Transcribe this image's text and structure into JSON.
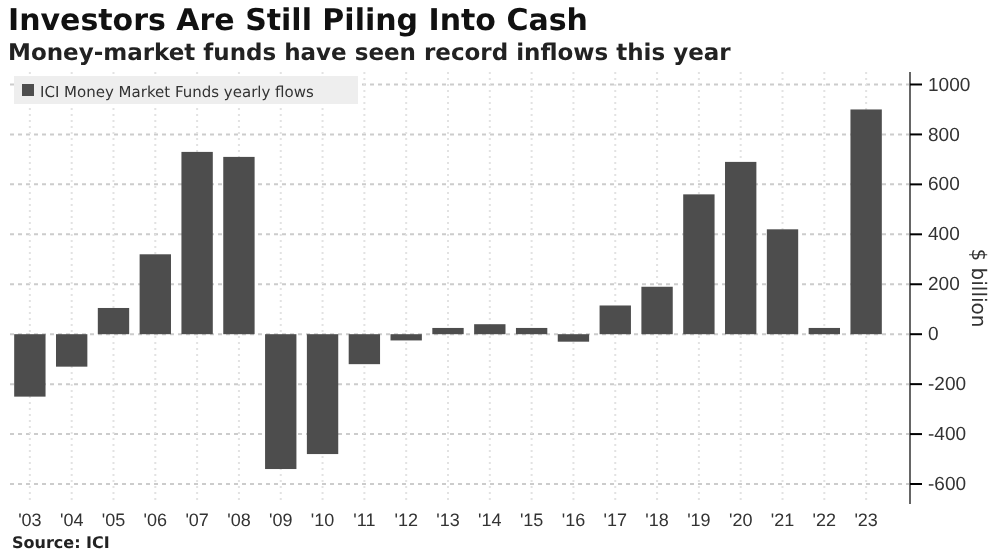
{
  "chart_data": {
    "type": "bar",
    "title": "Investors Are Still Piling Into Cash",
    "subtitle": "Money-market funds have seen record inflows this year",
    "ylabel": "$ billion",
    "categories": [
      "'03",
      "'04",
      "'05",
      "'06",
      "'07",
      "'08",
      "'09",
      "'10",
      "'11",
      "'12",
      "'13",
      "'14",
      "'15",
      "'16",
      "'17",
      "'18",
      "'19",
      "'20",
      "'21",
      "'22",
      "'23"
    ],
    "series": [
      {
        "name": "ICI Money Market Funds yearly flows",
        "color": "#4d4d4d",
        "values": [
          -250,
          -130,
          105,
          320,
          730,
          710,
          -540,
          -480,
          -120,
          -25,
          25,
          40,
          25,
          -30,
          115,
          190,
          560,
          690,
          420,
          25,
          900
        ]
      }
    ],
    "ylim": [
      -680,
      1050
    ],
    "yticks": [
      -600,
      -400,
      -200,
      0,
      200,
      400,
      600,
      800,
      1000
    ],
    "grid": true,
    "legend": "top left",
    "annotations": [
      "Source: ICI"
    ]
  }
}
